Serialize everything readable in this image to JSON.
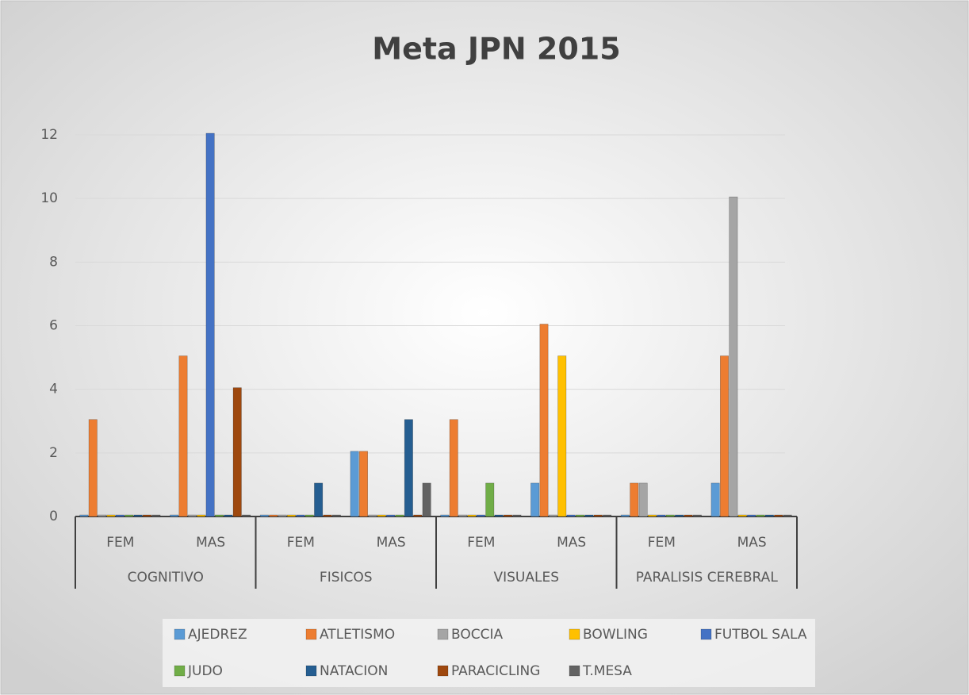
{
  "chart_data": {
    "type": "bar",
    "title": "Meta JPN 2015",
    "categories": [
      "FEM",
      "MAS",
      "FEM",
      "MAS",
      "FEM",
      "MAS",
      "FEM",
      "MAS"
    ],
    "groups": [
      "COGNITIVO",
      "FISICOS",
      "VISUALES",
      "PARALISIS CEREBRAL"
    ],
    "series": [
      {
        "name": "AJEDREZ",
        "color": "#5b9bd5",
        "values": [
          0,
          0,
          0,
          2,
          0,
          1,
          0,
          1
        ]
      },
      {
        "name": "ATLETISMO",
        "color": "#ed7d31",
        "values": [
          3,
          5,
          0,
          2,
          3,
          6,
          1,
          5
        ]
      },
      {
        "name": "BOCCIA",
        "color": "#a5a5a5",
        "values": [
          0,
          0,
          0,
          0,
          0,
          0,
          1,
          10
        ]
      },
      {
        "name": "BOWLING",
        "color": "#ffc000",
        "values": [
          0,
          0,
          0,
          0,
          0,
          5,
          0,
          0
        ]
      },
      {
        "name": "FUTBOL SALA",
        "color": "#4472c4",
        "values": [
          0,
          12,
          0,
          0,
          0,
          0,
          0,
          0
        ]
      },
      {
        "name": "JUDO",
        "color": "#70ad47",
        "values": [
          0,
          0,
          0,
          0,
          1,
          0,
          0,
          0
        ]
      },
      {
        "name": "NATACION",
        "color": "#255e91",
        "values": [
          0,
          0,
          1,
          3,
          0,
          0,
          0,
          0
        ]
      },
      {
        "name": "PARACICLING",
        "color": "#9e480e",
        "values": [
          0,
          4,
          0,
          0,
          0,
          0,
          0,
          0
        ]
      },
      {
        "name": "T.MESA",
        "color": "#636363",
        "values": [
          0,
          0,
          0,
          1,
          0,
          0,
          0,
          0
        ]
      }
    ],
    "ylim": [
      0,
      12
    ],
    "yticks": [
      0,
      2,
      4,
      6,
      8,
      10,
      12
    ],
    "grid": true,
    "legend": "bottom"
  }
}
